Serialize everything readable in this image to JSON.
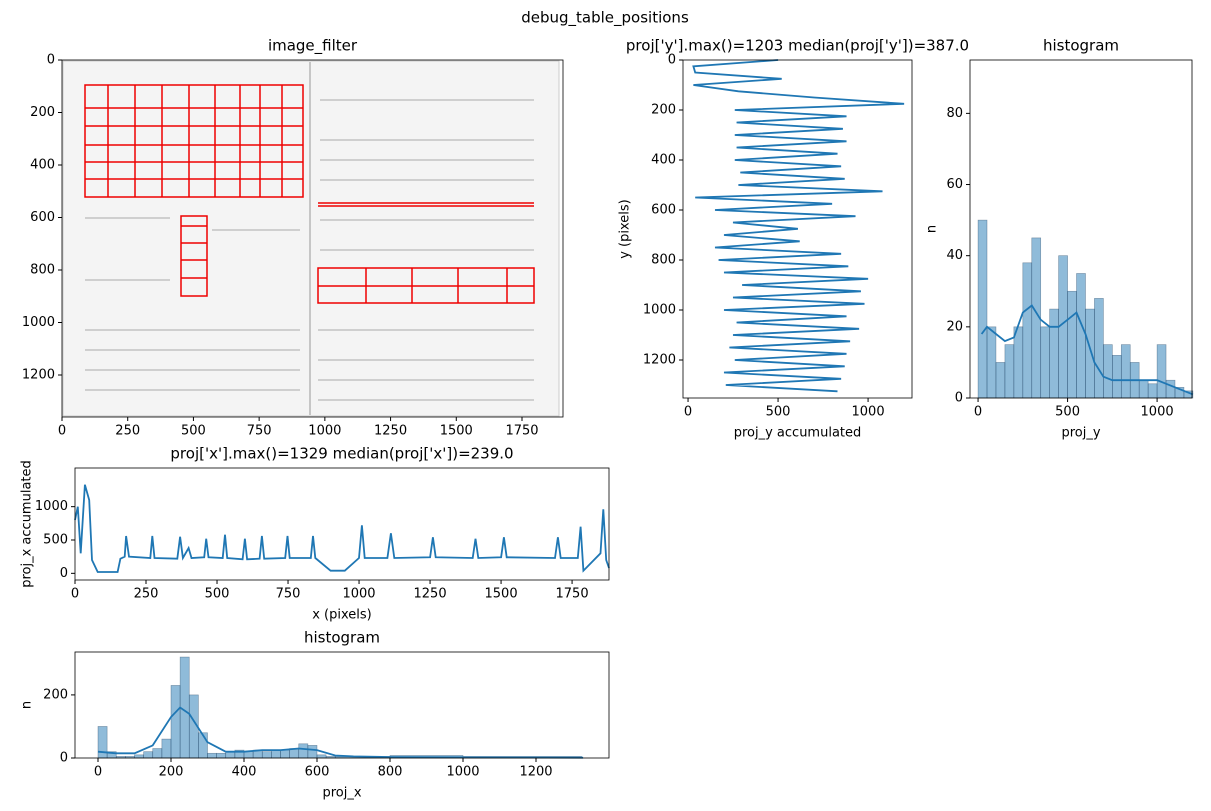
{
  "title": "debug_table_positions",
  "chart_data": [
    {
      "type": "image",
      "title": "image_filter",
      "xlim": [
        0,
        1906
      ],
      "ylim": [
        1360,
        0
      ],
      "xticks": [
        0,
        250,
        500,
        750,
        1000,
        1250,
        1500,
        1750
      ],
      "yticks": [
        0,
        200,
        400,
        600,
        800,
        1000,
        1200
      ]
    },
    {
      "type": "line",
      "orientation": "vertical",
      "title": "proj['y'].max()=1203 median(proj['y'])=387.0",
      "xlabel": "proj_y accumulated",
      "ylabel": "y (pixels)",
      "color": "#1f77b4",
      "xlim": [
        -28,
        1244
      ],
      "ylim": [
        1352,
        0
      ],
      "xticks": [
        0,
        500,
        1000
      ],
      "yticks": [
        0,
        200,
        400,
        600,
        800,
        1000,
        1200
      ],
      "y": [
        0,
        25,
        50,
        75,
        100,
        125,
        150,
        175,
        200,
        225,
        250,
        275,
        300,
        325,
        350,
        375,
        400,
        425,
        450,
        475,
        500,
        525,
        550,
        575,
        600,
        625,
        650,
        675,
        700,
        725,
        750,
        775,
        800,
        825,
        850,
        875,
        900,
        925,
        950,
        975,
        1000,
        1025,
        1050,
        1075,
        1100,
        1125,
        1150,
        1175,
        1200,
        1225,
        1250,
        1275,
        1300,
        1325
      ],
      "values": [
        500,
        30,
        40,
        520,
        30,
        280,
        700,
        1200,
        260,
        880,
        270,
        860,
        260,
        880,
        270,
        830,
        260,
        850,
        290,
        870,
        280,
        1080,
        40,
        800,
        150,
        930,
        250,
        610,
        200,
        620,
        150,
        850,
        170,
        890,
        200,
        1000,
        300,
        960,
        250,
        980,
        200,
        880,
        270,
        950,
        250,
        900,
        230,
        880,
        260,
        870,
        200,
        850,
        210,
        830
      ]
    },
    {
      "type": "histogram",
      "title": "histogram",
      "xlabel": "proj_y",
      "ylabel": "n",
      "color": "#1f77b4",
      "xlim": [
        -45,
        1195
      ],
      "ylim": [
        0,
        95
      ],
      "xticks": [
        0,
        500,
        1000
      ],
      "yticks": [
        0,
        20,
        40,
        60,
        80
      ],
      "bins": [
        0,
        50,
        100,
        150,
        200,
        250,
        300,
        350,
        400,
        450,
        500,
        550,
        600,
        650,
        700,
        750,
        800,
        850,
        900,
        950,
        1000,
        1050,
        1100,
        1150,
        1200
      ],
      "counts": [
        50,
        20,
        10,
        15,
        20,
        38,
        45,
        20,
        25,
        40,
        30,
        35,
        25,
        28,
        15,
        12,
        15,
        10,
        5,
        4,
        15,
        5,
        3,
        2
      ],
      "kde": {
        "x": [
          20,
          50,
          100,
          150,
          200,
          250,
          300,
          350,
          400,
          450,
          500,
          550,
          600,
          650,
          700,
          750,
          800,
          900,
          1000,
          1100,
          1200
        ],
        "values": [
          18,
          20,
          18,
          16,
          17,
          24,
          26,
          22,
          20,
          20,
          22,
          24,
          18,
          10,
          6,
          5,
          5,
          5,
          5,
          3,
          1
        ]
      }
    },
    {
      "type": "line",
      "orientation": "horizontal",
      "title": "proj['x'].max()=1329 median(proj['x'])=239.0",
      "xlabel": "x (pixels)",
      "ylabel": "proj_x accumulated",
      "color": "#1f77b4",
      "xlim": [
        0,
        1880
      ],
      "ylim": [
        -100,
        1580
      ],
      "xticks": [
        0,
        250,
        500,
        750,
        1000,
        1250,
        1500,
        1750
      ],
      "yticks": [
        0,
        500,
        1000
      ],
      "x": [
        0,
        10,
        20,
        35,
        50,
        60,
        80,
        150,
        160,
        175,
        180,
        190,
        265,
        272,
        280,
        360,
        370,
        380,
        400,
        410,
        455,
        462,
        470,
        520,
        528,
        536,
        590,
        598,
        606,
        650,
        658,
        666,
        740,
        748,
        756,
        830,
        838,
        846,
        900,
        950,
        1000,
        1010,
        1020,
        1100,
        1112,
        1124,
        1250,
        1260,
        1270,
        1400,
        1410,
        1420,
        1500,
        1510,
        1520,
        1690,
        1700,
        1710,
        1770,
        1780,
        1790,
        1850,
        1860,
        1870,
        1880
      ],
      "values": [
        800,
        1000,
        300,
        1329,
        1100,
        200,
        20,
        20,
        220,
        250,
        560,
        250,
        230,
        560,
        230,
        220,
        550,
        230,
        380,
        230,
        240,
        520,
        240,
        230,
        580,
        230,
        210,
        520,
        210,
        220,
        560,
        220,
        230,
        560,
        230,
        230,
        560,
        230,
        40,
        40,
        230,
        720,
        230,
        230,
        600,
        230,
        240,
        540,
        240,
        230,
        520,
        230,
        240,
        540,
        240,
        230,
        540,
        230,
        230,
        700,
        40,
        300,
        960,
        200,
        80
      ]
    },
    {
      "type": "histogram",
      "title": "histogram",
      "xlabel": "proj_x",
      "ylabel": "n",
      "color": "#1f77b4",
      "xlim": [
        -63,
        1400
      ],
      "ylim": [
        0,
        336
      ],
      "xticks": [
        0,
        200,
        400,
        600,
        800,
        1000,
        1200
      ],
      "yticks": [
        0,
        200
      ],
      "bins": [
        0,
        25,
        50,
        75,
        100,
        125,
        150,
        175,
        200,
        225,
        250,
        275,
        300,
        325,
        350,
        375,
        400,
        425,
        450,
        475,
        500,
        525,
        550,
        575,
        600,
        625,
        650,
        800,
        1000,
        1325
      ],
      "counts": [
        100,
        20,
        5,
        5,
        10,
        20,
        30,
        60,
        230,
        320,
        200,
        80,
        15,
        15,
        20,
        25,
        20,
        25,
        20,
        25,
        25,
        30,
        45,
        40,
        10,
        5,
        5,
        8,
        5
      ],
      "kde": {
        "x": [
          0,
          50,
          100,
          150,
          200,
          225,
          250,
          300,
          350,
          400,
          450,
          500,
          550,
          600,
          650,
          700,
          800,
          1000,
          1329
        ],
        "values": [
          20,
          15,
          15,
          40,
          130,
          160,
          140,
          50,
          20,
          20,
          25,
          25,
          30,
          25,
          8,
          5,
          3,
          2,
          1
        ]
      }
    }
  ]
}
